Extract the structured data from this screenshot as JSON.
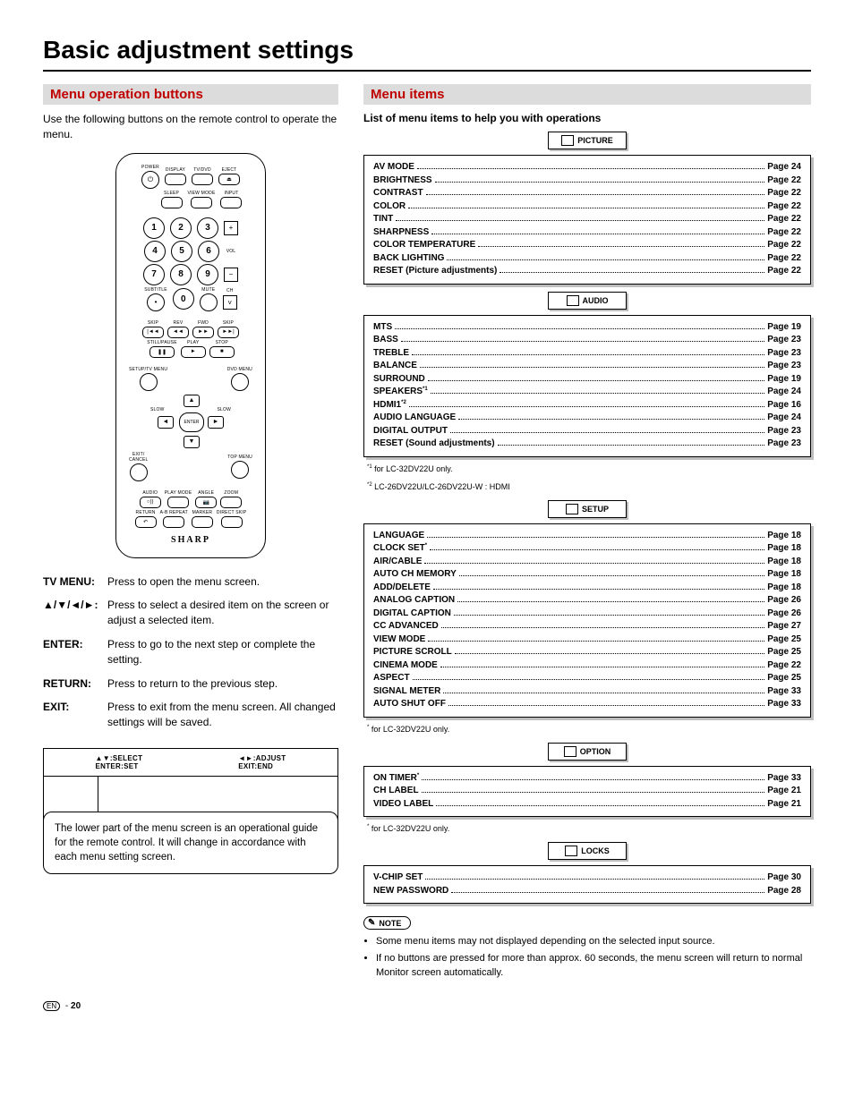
{
  "title": "Basic adjustment settings",
  "left": {
    "heading": "Menu operation buttons",
    "intro": "Use the following buttons on the remote control to operate the menu.",
    "remote": {
      "row1": [
        "POWER",
        "DISPLAY",
        "TV/DVD",
        "EJECT"
      ],
      "row2": [
        "SLEEP",
        "VIEW MODE",
        "INPUT"
      ],
      "numpad": [
        "1",
        "2",
        "3",
        "4",
        "5",
        "6",
        "7",
        "8",
        "9",
        "0"
      ],
      "subtitle": "SUBTITLE",
      "mute": "MUTE",
      "vol": "VOL",
      "ch": "CH",
      "transport1": [
        "SKIP",
        "REV",
        "FWD",
        "SKIP"
      ],
      "transport2": [
        "STILL/PAUSE",
        "PLAY",
        "STOP"
      ],
      "menuL": "SETUP/TV MENU",
      "menuR": "DVD MENU",
      "slow": "SLOW",
      "enter": "ENTER",
      "exitL": "EXIT/\nCANCEL",
      "exitR": "TOP MENU",
      "row_bottom1": [
        "AUDIO",
        "PLAY MODE",
        "ANGLE",
        "ZOOM"
      ],
      "row_bottom2": [
        "RETURN",
        "A-B REPEAT",
        "MARKER",
        "DIRECT SKIP"
      ],
      "brand": "SHARP"
    },
    "descs": [
      {
        "k": "TV MENU:",
        "v": "Press to open the menu screen."
      },
      {
        "k": "▲/▼/◄/►:",
        "v": "Press to select a desired item on the screen or adjust a selected item."
      },
      {
        "k": "ENTER:",
        "v": "Press to go to the next step or complete the setting."
      },
      {
        "k": "RETURN:",
        "v": "Press to return to the previous step."
      },
      {
        "k": "EXIT:",
        "v": "Press to exit from the menu screen. All changed settings will be saved."
      }
    ],
    "legend": {
      "l": "▲▼:SELECT\nENTER:SET",
      "r": "◄►:ADJUST\nEXIT:END"
    },
    "callout": "The lower part of the menu screen is an operational guide for the remote control. It will change in accordance with each menu setting screen."
  },
  "right": {
    "heading": "Menu items",
    "subhead": "List of menu items to help you with operations",
    "groups": [
      {
        "title": "PICTURE",
        "items": [
          {
            "n": "AV MODE",
            "p": "Page 24"
          },
          {
            "n": "BRIGHTNESS",
            "p": "Page 22"
          },
          {
            "n": "CONTRAST",
            "p": "Page 22"
          },
          {
            "n": "COLOR",
            "p": "Page 22"
          },
          {
            "n": "TINT",
            "p": "Page 22"
          },
          {
            "n": "SHARPNESS",
            "p": "Page 22"
          },
          {
            "n": "COLOR TEMPERATURE",
            "p": "Page 22"
          },
          {
            "n": "BACK LIGHTING",
            "p": "Page 22"
          },
          {
            "n": "RESET (Picture adjustments)",
            "p": "Page 22"
          }
        ]
      },
      {
        "title": "AUDIO",
        "items": [
          {
            "n": "MTS",
            "p": "Page 19"
          },
          {
            "n": "BASS",
            "p": "Page 23"
          },
          {
            "n": "TREBLE",
            "p": "Page 23"
          },
          {
            "n": "BALANCE",
            "p": "Page 23"
          },
          {
            "n": "SURROUND",
            "p": "Page 19"
          },
          {
            "n": "SPEAKERS",
            "sup": "*1",
            "p": "Page 24"
          },
          {
            "n": "HDMI1",
            "sup": "*2",
            "p": "Page 16"
          },
          {
            "n": "AUDIO LANGUAGE",
            "p": "Page 24"
          },
          {
            "n": "DIGITAL OUTPUT",
            "p": "Page 23"
          },
          {
            "n": "RESET (Sound adjustments)",
            "p": "Page 23"
          }
        ],
        "footnotes": [
          {
            "s": "*1",
            "t": " for LC-32DV22U only."
          },
          {
            "s": "*2",
            "t": " LC-26DV22U/LC-26DV22U-W : HDMI"
          }
        ]
      },
      {
        "title": "SETUP",
        "items": [
          {
            "n": "LANGUAGE",
            "p": "Page 18"
          },
          {
            "n": "CLOCK SET",
            "sup": "*",
            "p": "Page 18"
          },
          {
            "n": "AIR/CABLE",
            "p": "Page 18"
          },
          {
            "n": "AUTO CH MEMORY",
            "p": "Page 18"
          },
          {
            "n": "ADD/DELETE",
            "p": "Page 18"
          },
          {
            "n": "ANALOG CAPTION",
            "p": "Page 26"
          },
          {
            "n": "DIGITAL CAPTION",
            "p": "Page 26"
          },
          {
            "n": "CC ADVANCED",
            "p": "Page 27"
          },
          {
            "n": "VIEW MODE",
            "p": "Page 25"
          },
          {
            "n": "PICTURE SCROLL",
            "p": "Page 25"
          },
          {
            "n": "CINEMA MODE",
            "p": "Page 22"
          },
          {
            "n": "ASPECT",
            "p": "Page 25"
          },
          {
            "n": "SIGNAL METER",
            "p": "Page 33"
          },
          {
            "n": "AUTO SHUT OFF",
            "p": "Page 33"
          }
        ],
        "footnotes": [
          {
            "s": "*",
            "t": " for LC-32DV22U only."
          }
        ]
      },
      {
        "title": "OPTION",
        "items": [
          {
            "n": "ON TIMER",
            "sup": "*",
            "p": "Page 33"
          },
          {
            "n": "CH LABEL",
            "p": "Page 21"
          },
          {
            "n": "VIDEO LABEL",
            "p": "Page 21"
          }
        ],
        "footnotes": [
          {
            "s": "*",
            "t": " for LC-32DV22U only."
          }
        ]
      },
      {
        "title": "LOCKS",
        "items": [
          {
            "n": "V-CHIP SET",
            "p": "Page 30"
          },
          {
            "n": "NEW PASSWORD",
            "p": "Page 28"
          }
        ]
      }
    ],
    "note_label": "NOTE",
    "notes": [
      "Some menu items may not displayed depending on the selected input source.",
      "If no buttons are pressed for more than approx. 60 seconds, the menu screen will return to normal Monitor screen automatically."
    ]
  },
  "page": {
    "lang": "EN",
    "num": "20"
  }
}
